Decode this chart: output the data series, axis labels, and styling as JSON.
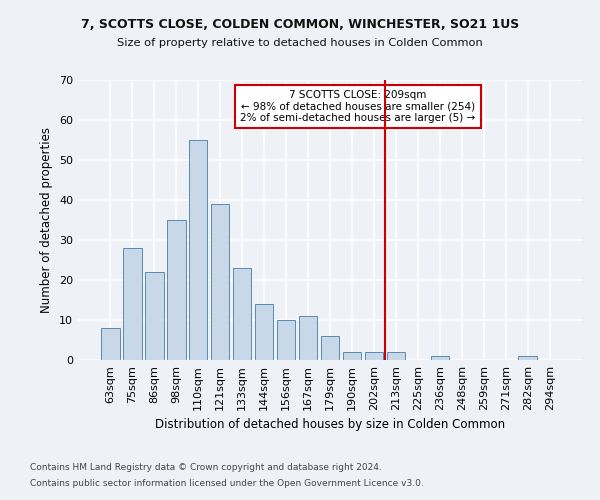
{
  "title1": "7, SCOTTS CLOSE, COLDEN COMMON, WINCHESTER, SO21 1US",
  "title2": "Size of property relative to detached houses in Colden Common",
  "xlabel": "Distribution of detached houses by size in Colden Common",
  "ylabel": "Number of detached properties",
  "bar_labels": [
    "63sqm",
    "75sqm",
    "86sqm",
    "98sqm",
    "110sqm",
    "121sqm",
    "133sqm",
    "144sqm",
    "156sqm",
    "167sqm",
    "179sqm",
    "190sqm",
    "202sqm",
    "213sqm",
    "225sqm",
    "236sqm",
    "248sqm",
    "259sqm",
    "271sqm",
    "282sqm",
    "294sqm"
  ],
  "bar_heights": [
    8,
    28,
    22,
    35,
    55,
    39,
    23,
    14,
    10,
    11,
    6,
    2,
    2,
    2,
    0,
    1,
    0,
    0,
    0,
    1,
    0
  ],
  "bar_color": "#c8d8e8",
  "bar_edgecolor": "#5a8ab0",
  "vline_idx": 12.5,
  "vline_color": "#cc0000",
  "annotation_title": "7 SCOTTS CLOSE: 209sqm",
  "annotation_line1": "← 98% of detached houses are smaller (254)",
  "annotation_line2": "2% of semi-detached houses are larger (5) →",
  "annotation_box_color": "#cc0000",
  "ylim": [
    0,
    70
  ],
  "yticks": [
    0,
    10,
    20,
    30,
    40,
    50,
    60,
    70
  ],
  "footnote1": "Contains HM Land Registry data © Crown copyright and database right 2024.",
  "footnote2": "Contains public sector information licensed under the Open Government Licence v3.0.",
  "bg_color": "#eef2f7",
  "grid_color": "#ffffff"
}
